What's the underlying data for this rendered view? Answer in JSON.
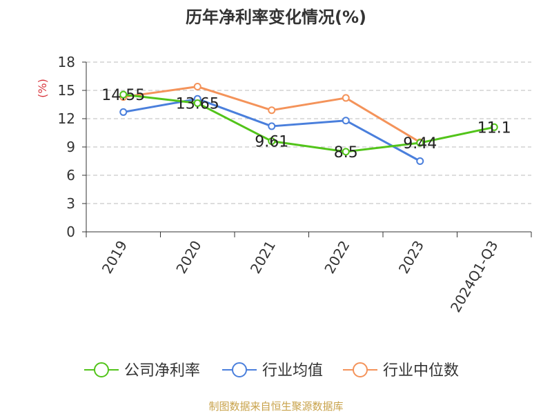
{
  "chart_data": {
    "type": "line",
    "title": "历年净利率变化情况(%)",
    "ylabel": "(%)",
    "xlabel": "",
    "categories": [
      "2019",
      "2020",
      "2021",
      "2022",
      "2023",
      "2024Q1-Q3"
    ],
    "ylim": [
      0,
      18
    ],
    "yticks": [
      0,
      3,
      6,
      9,
      12,
      15,
      18
    ],
    "grid": true,
    "legend_position": "bottom",
    "series": [
      {
        "name": "公司净利率",
        "color": "#52c41a",
        "values": [
          14.55,
          13.65,
          9.61,
          8.5,
          9.44,
          11.1
        ],
        "labels": [
          "14.55",
          "13.65",
          "9.61",
          "8.5",
          "9.44",
          "11.1"
        ]
      },
      {
        "name": "行业均值",
        "color": "#4a7fdc",
        "values": [
          12.7,
          14.1,
          11.2,
          11.8,
          7.5,
          null
        ]
      },
      {
        "name": "行业中位数",
        "color": "#f4935a",
        "values": [
          14.3,
          15.4,
          12.9,
          14.2,
          9.5,
          null
        ]
      }
    ]
  },
  "colors": {
    "axis": "#333333",
    "grid": "#bbbbbb",
    "unit": "#d9363e",
    "source": "#c8a24a"
  },
  "source_text": "制图数据来自恒生聚源数据库"
}
